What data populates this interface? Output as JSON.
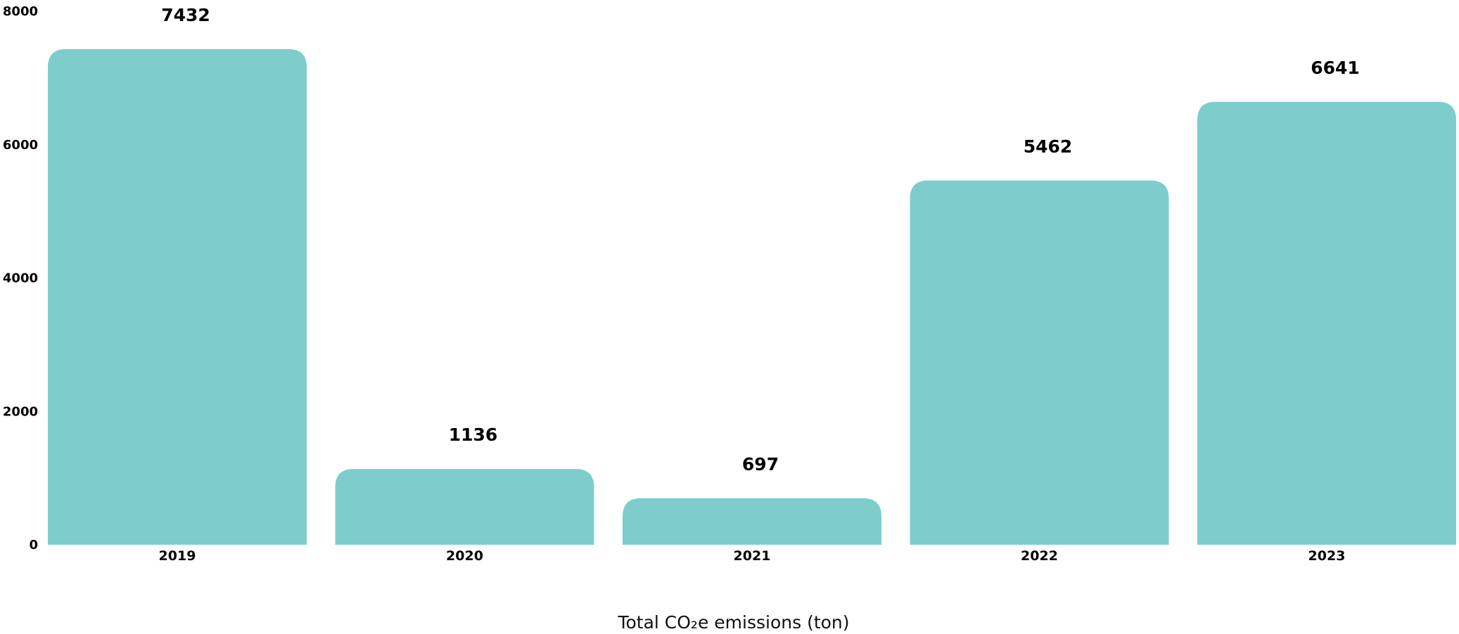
{
  "chart_data": {
    "type": "bar",
    "categories": [
      "2019",
      "2020",
      "2021",
      "2022",
      "2023"
    ],
    "values": [
      7432,
      1136,
      697,
      5462,
      6641
    ],
    "data_labels": [
      "7432",
      "1136",
      "697",
      "5462",
      "6641"
    ],
    "title": "",
    "xlabel": "Total CO₂e emissions (ton)",
    "ylabel": "",
    "ylim": [
      0,
      8000
    ],
    "yticks": [
      "0",
      "2000",
      "4000",
      "6000",
      "8000"
    ],
    "grid": false,
    "legend": "none",
    "bar_color": "#7ECDCC"
  }
}
